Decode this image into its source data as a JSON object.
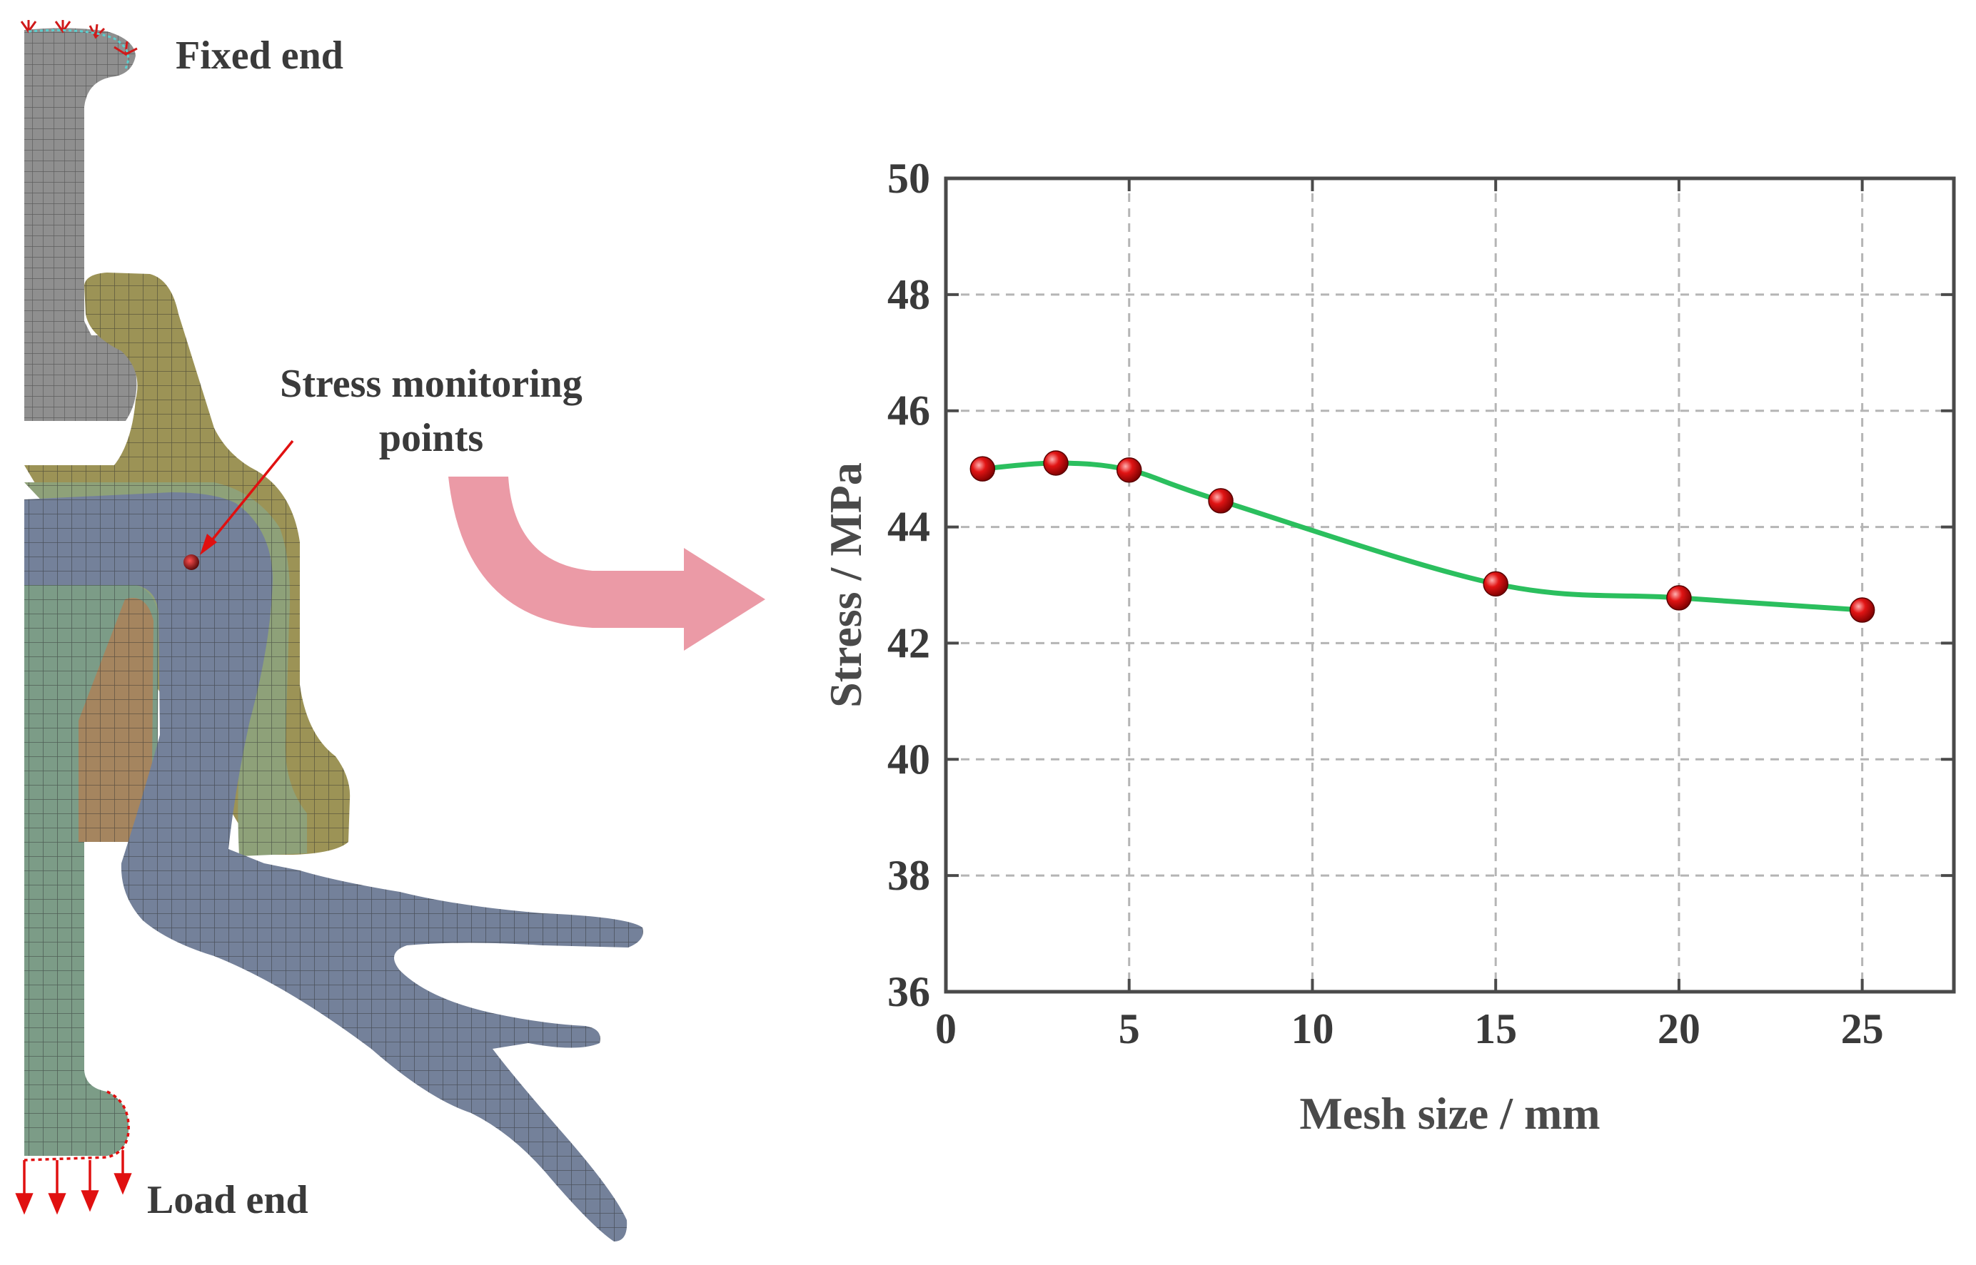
{
  "labels": {
    "fixed_end": "Fixed end",
    "load_end": "Load end",
    "stress_points_line1": "Stress monitoring",
    "stress_points_line2": "points"
  },
  "colors": {
    "rail_part": "#8f8f8f",
    "olive_part": "#9c9356",
    "green_part": "#8ea179",
    "brown_part": "#a5855f",
    "sage_part": "#7c9c87",
    "blue_part": "#74819a",
    "mesh_line": "#2b2b2b",
    "arrow_red": "#e01010",
    "flow_arrow": "#eb9aa6",
    "curve": "#2bbf5e",
    "marker": "#e11414"
  },
  "chart_data": {
    "type": "line",
    "xlabel": "Mesh size / mm",
    "ylabel": "Stress / MPa",
    "xlim": [
      0,
      27.5
    ],
    "ylim": [
      36,
      50
    ],
    "xticks": [
      0,
      5,
      10,
      15,
      20,
      25
    ],
    "yticks": [
      36,
      38,
      40,
      42,
      44,
      46,
      48,
      50
    ],
    "grid": true,
    "series": [
      {
        "x": [
          1,
          3,
          5,
          7.5,
          15,
          20,
          25
        ],
        "y": [
          45.0,
          45.1,
          44.98,
          44.45,
          43.02,
          42.78,
          42.57
        ]
      }
    ]
  }
}
